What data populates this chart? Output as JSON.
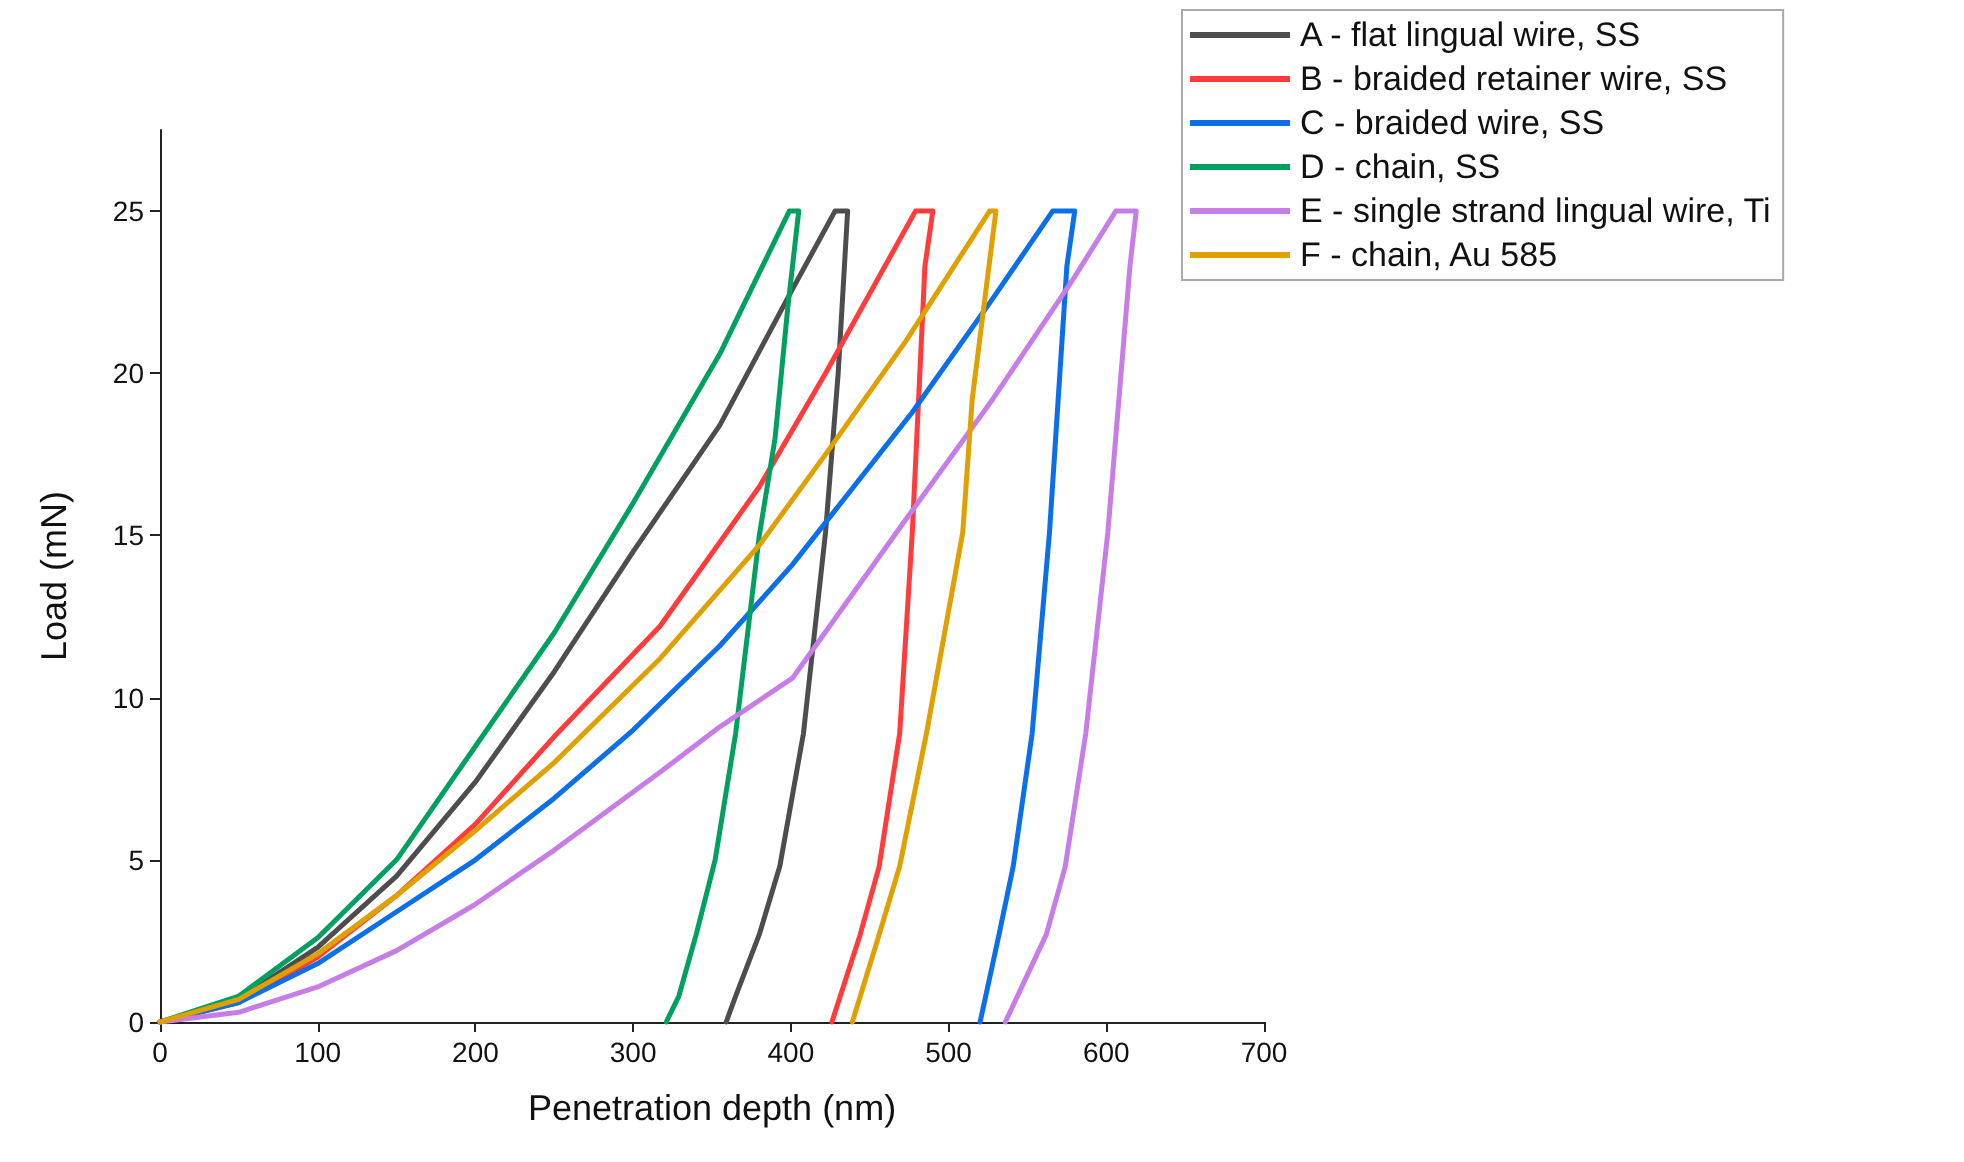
{
  "chart_data": {
    "type": "line",
    "xlabel": "Penetration depth (nm)",
    "ylabel": "Load (mN)",
    "xlim": [
      0,
      700
    ],
    "ylim": [
      0,
      27.5
    ],
    "xticks": [
      0,
      100,
      200,
      300,
      400,
      500,
      600,
      700
    ],
    "yticks": [
      0,
      5,
      10,
      15,
      20,
      25
    ],
    "grid": false,
    "legend": "top right",
    "marker": "none",
    "line_style": "solid",
    "series": [
      {
        "name": "A - flat lingual wire, SS",
        "color": "#4d4d4d",
        "x": [
          0,
          50,
          100,
          150,
          200,
          250,
          300,
          355,
          400,
          428,
          436,
          430,
          422,
          408,
          393,
          380,
          365,
          359
        ],
        "values": [
          0,
          0.7,
          2.3,
          4.5,
          7.4,
          10.8,
          14.5,
          18.4,
          22.5,
          25,
          25,
          20,
          15.1,
          8.9,
          4.8,
          2.7,
          0.8,
          0
        ]
      },
      {
        "name": "B - braided retainer wire, SS",
        "color": "#ff3b3b",
        "x": [
          0,
          50,
          100,
          150,
          200,
          250,
          317,
          380,
          422,
          479,
          490,
          485,
          477,
          469,
          456,
          444,
          426
        ],
        "values": [
          0,
          0.6,
          2,
          3.9,
          6.1,
          8.8,
          12.2,
          16.5,
          20,
          25,
          25,
          23.3,
          15.1,
          8.9,
          4.8,
          2.7,
          0
        ]
      },
      {
        "name": "C - braided wire, SS",
        "color": "#0a6fe8",
        "x": [
          0,
          50,
          100,
          150,
          200,
          250,
          300,
          355,
          401,
          477,
          528,
          566,
          580,
          575,
          564,
          553,
          541,
          532,
          520
        ],
        "values": [
          0,
          0.6,
          1.8,
          3.4,
          5,
          6.9,
          9,
          11.6,
          14.1,
          18.8,
          22.3,
          25,
          25,
          23.3,
          15.1,
          8.9,
          4.8,
          2.7,
          0
        ]
      },
      {
        "name": "D - chain, SS",
        "color": "#00a060",
        "x": [
          0,
          50,
          100,
          150,
          200,
          250,
          300,
          355,
          399,
          405,
          398,
          390,
          380,
          365,
          352,
          340,
          329,
          321
        ],
        "values": [
          0,
          0.8,
          2.6,
          5,
          8.5,
          12,
          16,
          20.6,
          25,
          25,
          22,
          18,
          15,
          8.9,
          5,
          2.7,
          0.8,
          0
        ]
      },
      {
        "name": "E - single strand lingual wire, Ti",
        "color": "#c77de8",
        "x": [
          0,
          50,
          101,
          150,
          199,
          250,
          317,
          355,
          401,
          473,
          528,
          579,
          606,
          619,
          615,
          601,
          587,
          574,
          562,
          536
        ],
        "values": [
          0,
          0.3,
          1.1,
          2.2,
          3.6,
          5.3,
          7.7,
          9.1,
          10.6,
          15.5,
          19.2,
          22.9,
          25,
          25,
          23.3,
          15.1,
          8.9,
          4.8,
          2.7,
          0
        ]
      },
      {
        "name": "F - chain, Au 585",
        "color": "#e0a000",
        "x": [
          0,
          50,
          100,
          150,
          200,
          250,
          317,
          380,
          422,
          473,
          526,
          530,
          515,
          509,
          486,
          469,
          456,
          439
        ],
        "values": [
          0,
          0.7,
          2.1,
          3.9,
          5.9,
          8,
          11.2,
          14.7,
          17.5,
          21,
          25,
          25,
          19.2,
          15.1,
          8.9,
          4.8,
          2.7,
          0
        ]
      }
    ]
  }
}
